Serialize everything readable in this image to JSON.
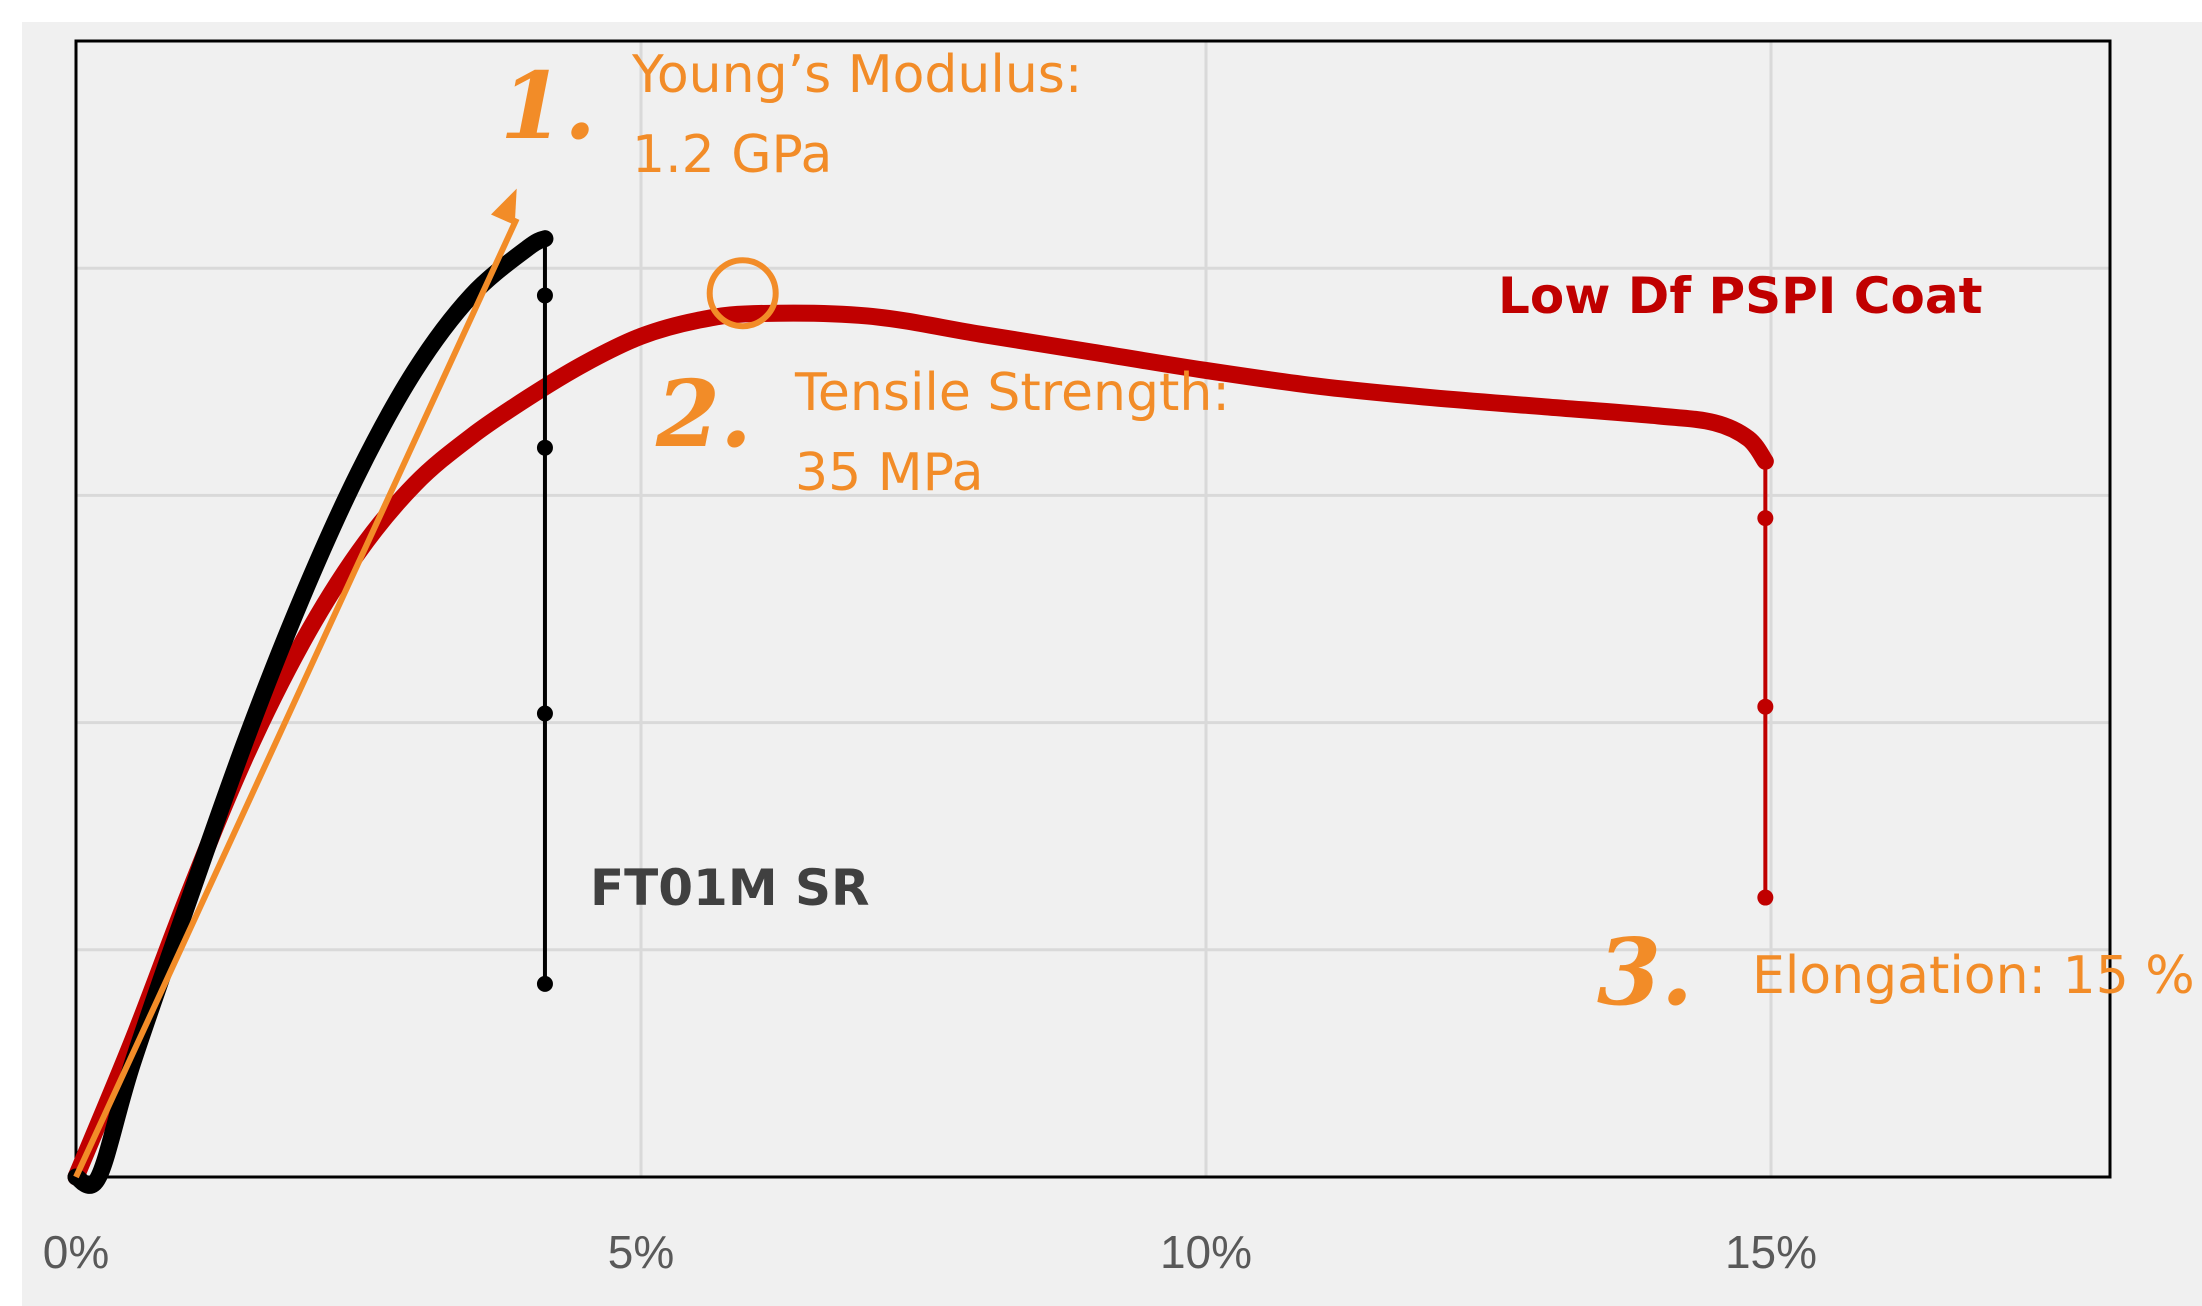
{
  "chart_data": {
    "type": "line",
    "title": "",
    "xlabel": "",
    "ylabel": "",
    "xlim": [
      0,
      18
    ],
    "ylim": [
      0,
      50
    ],
    "x_tick_values": [
      0,
      5,
      10,
      15
    ],
    "x_tick_labels": [
      "0%",
      "5%",
      "10%",
      "15%"
    ],
    "y_gridlines": [
      10,
      20,
      30,
      40
    ],
    "grid": true,
    "series": [
      {
        "name": "FT01M SR",
        "color": "#000000",
        "points": [
          [
            0,
            0
          ],
          [
            0.2,
            0
          ],
          [
            0.5,
            5
          ],
          [
            1,
            12.2
          ],
          [
            1.5,
            19.2
          ],
          [
            2,
            25.5
          ],
          [
            2.5,
            31
          ],
          [
            3,
            35.5
          ],
          [
            3.5,
            38.8
          ],
          [
            4,
            40.9
          ],
          [
            4.15,
            41.3
          ],
          [
            4.15,
            38.8
          ],
          [
            4.15,
            32.1
          ],
          [
            4.15,
            20.4
          ],
          [
            4.15,
            8.5
          ]
        ]
      },
      {
        "name": "Low Df PSPI Coat",
        "color": "#c00000",
        "points": [
          [
            0,
            0
          ],
          [
            0.5,
            6
          ],
          [
            1,
            12.5
          ],
          [
            1.5,
            18.5
          ],
          [
            2,
            23.5
          ],
          [
            2.5,
            27.5
          ],
          [
            3,
            30.5
          ],
          [
            3.5,
            32.6
          ],
          [
            4,
            34.3
          ],
          [
            4.5,
            35.8
          ],
          [
            5,
            37
          ],
          [
            5.5,
            37.7
          ],
          [
            6,
            38
          ],
          [
            7,
            37.9
          ],
          [
            8,
            37.1
          ],
          [
            9,
            36.3
          ],
          [
            10,
            35.5
          ],
          [
            11,
            34.8
          ],
          [
            12,
            34.3
          ],
          [
            13,
            33.9
          ],
          [
            14,
            33.5
          ],
          [
            14.5,
            33.2
          ],
          [
            14.8,
            32.5
          ],
          [
            14.95,
            31.5
          ],
          [
            14.95,
            29
          ],
          [
            14.95,
            20.7
          ],
          [
            14.95,
            12.3
          ]
        ]
      }
    ],
    "annotations": [
      {
        "number": "1.",
        "lines": [
          "Young’s Modulus:",
          "1.2 GPa"
        ]
      },
      {
        "number": "2.",
        "lines": [
          "Tensile Strength:",
          "35 MPa"
        ]
      },
      {
        "number": "3.",
        "lines": [
          "Elongation: 15 %"
        ]
      }
    ],
    "modulus_line": [
      [
        0,
        0
      ],
      [
        3.9,
        43.5
      ]
    ],
    "max_marker": [
      5.9,
      38.9
    ]
  },
  "colors": {
    "annotation": "#f28c28",
    "grid": "#d9d9d9",
    "plot_bg": "#f0f0f0"
  }
}
